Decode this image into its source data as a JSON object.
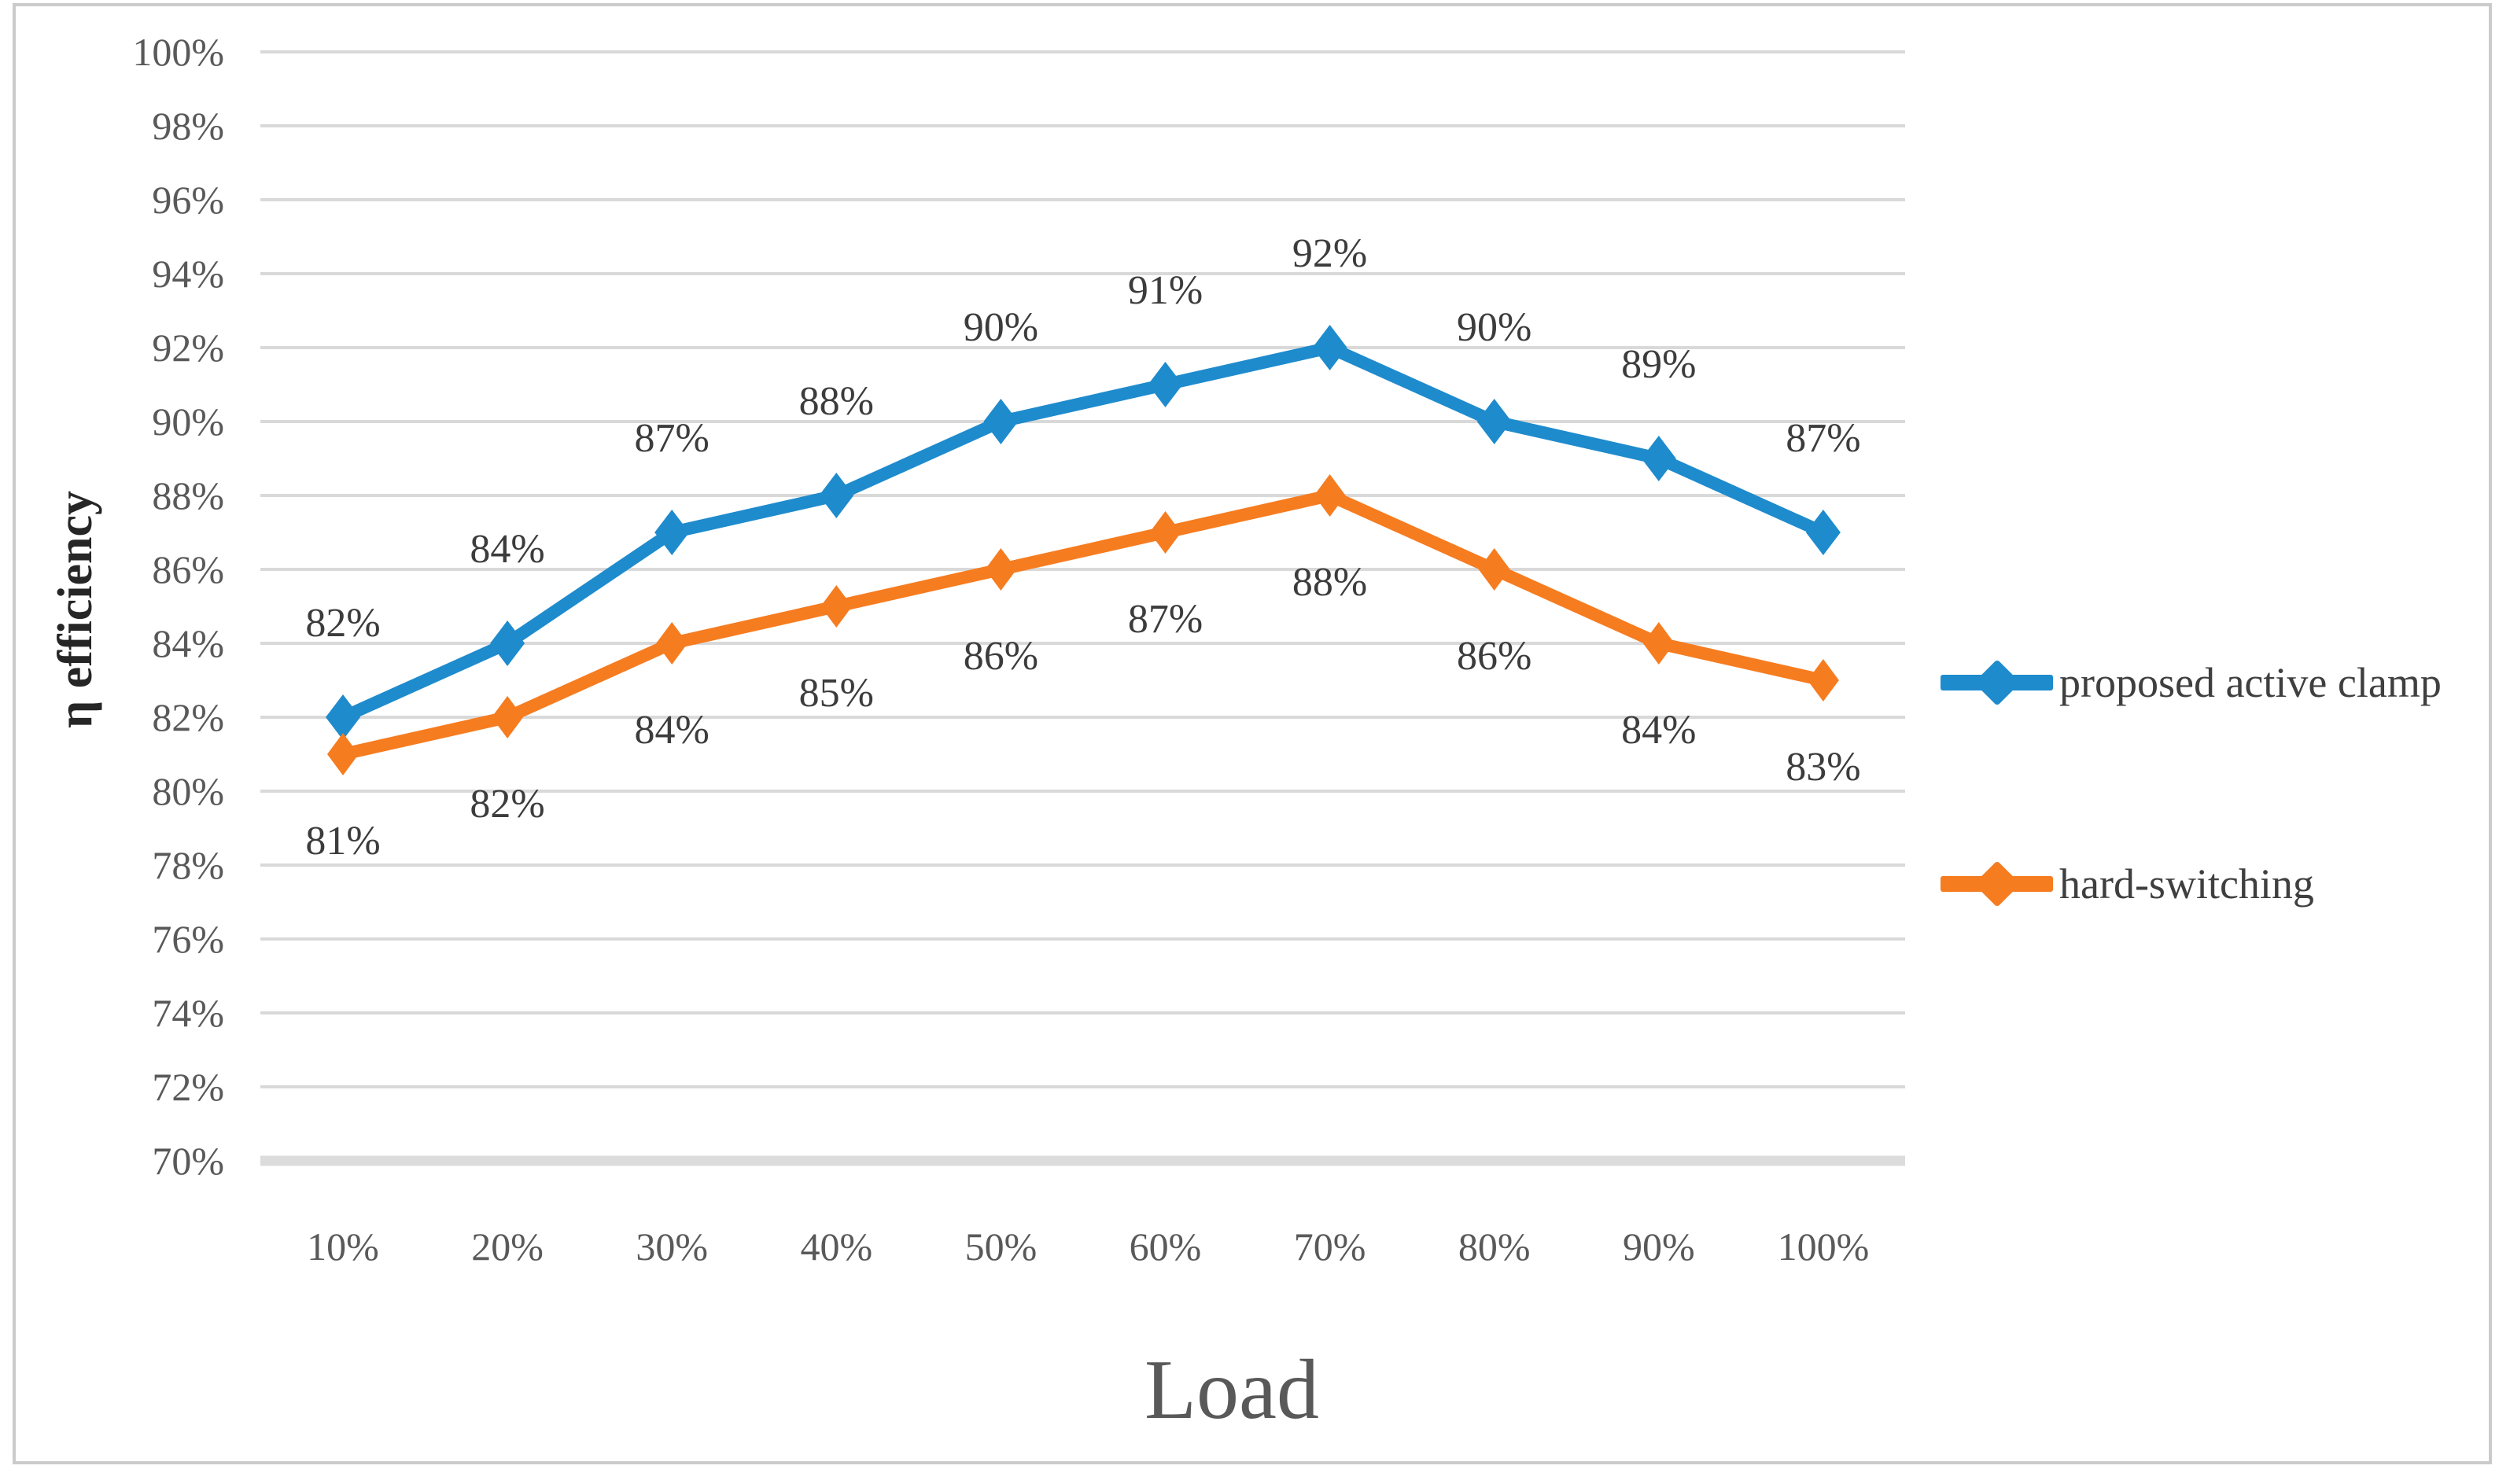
{
  "figure": {
    "background": "#ffffff",
    "border_color": "#cbcbcb"
  },
  "chart_data": {
    "type": "line",
    "title": "",
    "xlabel": "Load",
    "ylabel": "η efficiency",
    "categories": [
      "10%",
      "20%",
      "30%",
      "40%",
      "50%",
      "60%",
      "70%",
      "80%",
      "90%",
      "100%"
    ],
    "series": [
      {
        "name": "proposed active clamp",
        "color": "#1E8BCD",
        "marker": "diamond",
        "label_position": "above",
        "values": [
          82,
          84,
          87,
          88,
          90,
          91,
          92,
          90,
          89,
          87
        ],
        "data_labels": [
          "82%",
          "84%",
          "87%",
          "88%",
          "90%",
          "91%",
          "92%",
          "90%",
          "89%",
          "87%"
        ]
      },
      {
        "name": "hard-switching",
        "color": "#F67C20",
        "marker": "diamond",
        "label_position": "below",
        "values": [
          81,
          82,
          84,
          85,
          86,
          87,
          88,
          86,
          84,
          83
        ],
        "data_labels": [
          "81%",
          "82%",
          "84%",
          "85%",
          "86%",
          "87%",
          "88%",
          "86%",
          "84%",
          "83%"
        ]
      }
    ],
    "y_axis": {
      "min": 70,
      "max": 100,
      "step": 2,
      "tick_labels": [
        "70%",
        "72%",
        "74%",
        "76%",
        "78%",
        "80%",
        "82%",
        "84%",
        "86%",
        "88%",
        "90%",
        "92%",
        "94%",
        "96%",
        "98%",
        "100%"
      ]
    },
    "grid": true,
    "gridline_color": "#d9d9d9",
    "tick_label_color": "#595959",
    "data_label_color": "#3c3c3c",
    "legend_position": "right",
    "ylim": [
      70,
      100
    ]
  }
}
